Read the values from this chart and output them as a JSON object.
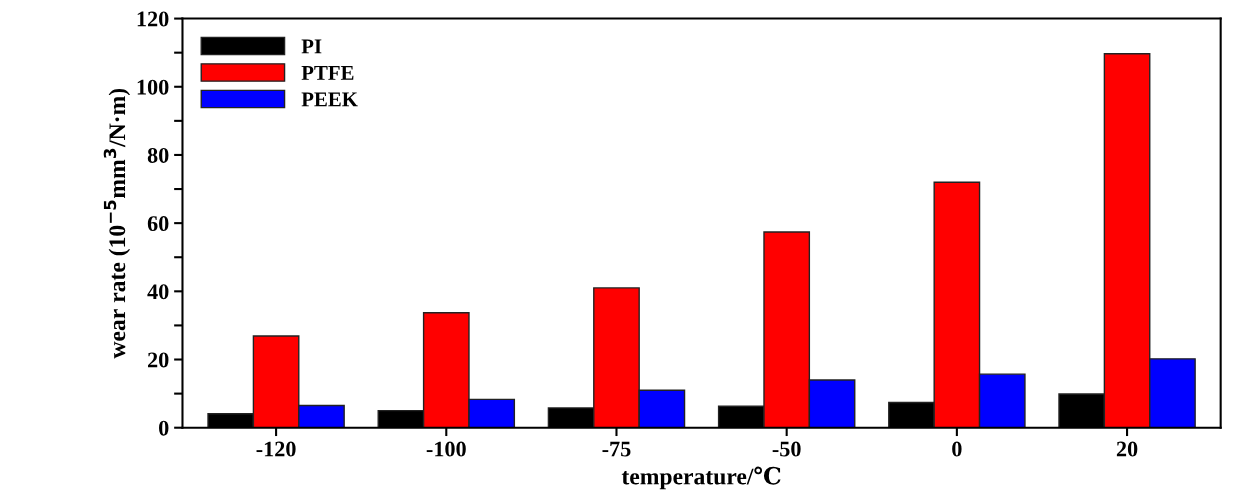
{
  "chart_data": {
    "type": "bar",
    "xlabel": "temperature/℃",
    "ylabel": "wear rate (10$^{−5}$mm$^{3}$/N·m)",
    "categories": [
      "-120",
      "-100",
      "-75",
      "-50",
      "0",
      "20"
    ],
    "series": [
      {
        "name": "PI",
        "color": "#000000",
        "values": [
          4.1,
          5.0,
          5.8,
          6.3,
          7.4,
          9.9
        ]
      },
      {
        "name": "PTFE",
        "color": "#ff0000",
        "values": [
          26.9,
          33.7,
          41,
          57.4,
          72,
          109.7
        ]
      },
      {
        "name": "PEEK",
        "color": "#0000ff",
        "values": [
          6.5,
          8.3,
          11,
          14,
          15.7,
          20.2
        ]
      }
    ],
    "ylim": [
      0,
      120
    ],
    "yticks": [
      0,
      {
        "value": 10,
        "label": null
      },
      20,
      {
        "value": 30,
        "label": null
      },
      40,
      {
        "value": 50,
        "label": null
      },
      60,
      {
        "value": 70,
        "label": null
      },
      80,
      {
        "value": 90,
        "label": null
      },
      100,
      {
        "value": 110,
        "label": null
      },
      120
    ],
    "legend": "top left",
    "grid": false
  }
}
